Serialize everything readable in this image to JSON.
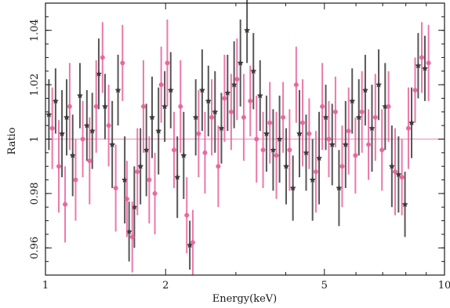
{
  "chart_data": {
    "type": "scatter",
    "title": "",
    "xlabel": "Energy(keV)",
    "ylabel": "Ratio",
    "xscale": "log",
    "xlim": [
      1,
      10
    ],
    "ylim": [
      0.95,
      1.05
    ],
    "x_ticks": [
      1,
      2,
      5,
      10
    ],
    "y_ticks": [
      0.96,
      0.98,
      1,
      1.02,
      1.04
    ],
    "grid": false,
    "legend": "none",
    "reference_line": {
      "y": 1,
      "color": "#f0a9c8"
    },
    "series": [
      {
        "marker": "star",
        "color": "#3a3a3a",
        "points": [
          {
            "x": 1.02,
            "y": 1.009,
            "err": 0.013
          },
          {
            "x": 1.06,
            "y": 1.014,
            "err": 0.012
          },
          {
            "x": 1.1,
            "y": 1.002,
            "err": 0.016
          },
          {
            "x": 1.13,
            "y": 1.008,
            "err": 0.014
          },
          {
            "x": 1.17,
            "y": 0.994,
            "err": 0.015
          },
          {
            "x": 1.22,
            "y": 1.016,
            "err": 0.012
          },
          {
            "x": 1.27,
            "y": 1.005,
            "err": 0.013
          },
          {
            "x": 1.31,
            "y": 1.003,
            "err": 0.014
          },
          {
            "x": 1.36,
            "y": 1.024,
            "err": 0.013
          },
          {
            "x": 1.41,
            "y": 1.012,
            "err": 0.012
          },
          {
            "x": 1.47,
            "y": 0.998,
            "err": 0.016
          },
          {
            "x": 1.52,
            "y": 1.018,
            "err": 0.013
          },
          {
            "x": 1.58,
            "y": 0.985,
            "err": 0.016
          },
          {
            "x": 1.62,
            "y": 0.966,
            "err": 0.011
          },
          {
            "x": 1.67,
            "y": 0.975,
            "err": 0.015
          },
          {
            "x": 1.73,
            "y": 0.99,
            "err": 0.014
          },
          {
            "x": 1.79,
            "y": 0.996,
            "err": 0.017
          },
          {
            "x": 1.85,
            "y": 1.008,
            "err": 0.015
          },
          {
            "x": 1.92,
            "y": 1.003,
            "err": 0.016
          },
          {
            "x": 1.99,
            "y": 1.012,
            "err": 0.013
          },
          {
            "x": 2.06,
            "y": 1.018,
            "err": 0.014
          },
          {
            "x": 2.14,
            "y": 0.986,
            "err": 0.015
          },
          {
            "x": 2.22,
            "y": 0.994,
            "err": 0.016
          },
          {
            "x": 2.3,
            "y": 0.961,
            "err": 0.009
          },
          {
            "x": 2.38,
            "y": 1.008,
            "err": 0.014
          },
          {
            "x": 2.47,
            "y": 1.018,
            "err": 0.015
          },
          {
            "x": 2.56,
            "y": 1.014,
            "err": 0.013
          },
          {
            "x": 2.66,
            "y": 1.01,
            "err": 0.015
          },
          {
            "x": 2.76,
            "y": 1.004,
            "err": 0.013
          },
          {
            "x": 2.86,
            "y": 1.017,
            "err": 0.014
          },
          {
            "x": 2.97,
            "y": 1.02,
            "err": 0.016
          },
          {
            "x": 3.08,
            "y": 1.028,
            "err": 0.016
          },
          {
            "x": 3.2,
            "y": 1.04,
            "err": 0.012
          },
          {
            "x": 3.32,
            "y": 1.025,
            "err": 0.014
          },
          {
            "x": 3.45,
            "y": 1.016,
            "err": 0.013
          },
          {
            "x": 3.58,
            "y": 1.002,
            "err": 0.014
          },
          {
            "x": 3.72,
            "y": 0.996,
            "err": 0.015
          },
          {
            "x": 3.86,
            "y": 1.0,
            "err": 0.016
          },
          {
            "x": 4.01,
            "y": 0.99,
            "err": 0.014
          },
          {
            "x": 4.17,
            "y": 0.982,
            "err": 0.012
          },
          {
            "x": 4.33,
            "y": 1.002,
            "err": 0.016
          },
          {
            "x": 4.5,
            "y": 0.995,
            "err": 0.014
          },
          {
            "x": 4.67,
            "y": 0.985,
            "err": 0.015
          },
          {
            "x": 4.85,
            "y": 0.993,
            "err": 0.017
          },
          {
            "x": 5.04,
            "y": 1.008,
            "err": 0.012
          },
          {
            "x": 5.23,
            "y": 0.998,
            "err": 0.015
          },
          {
            "x": 5.44,
            "y": 0.982,
            "err": 0.014
          },
          {
            "x": 5.65,
            "y": 0.998,
            "err": 0.016
          },
          {
            "x": 5.87,
            "y": 1.014,
            "err": 0.012
          },
          {
            "x": 6.1,
            "y": 1.008,
            "err": 0.014
          },
          {
            "x": 6.33,
            "y": 1.018,
            "err": 0.013
          },
          {
            "x": 6.58,
            "y": 1.004,
            "err": 0.016
          },
          {
            "x": 6.84,
            "y": 1.02,
            "err": 0.013
          },
          {
            "x": 7.1,
            "y": 1.012,
            "err": 0.016
          },
          {
            "x": 7.38,
            "y": 0.99,
            "err": 0.015
          },
          {
            "x": 7.67,
            "y": 0.987,
            "err": 0.014
          },
          {
            "x": 7.96,
            "y": 0.976,
            "err": 0.012
          },
          {
            "x": 8.27,
            "y": 1.006,
            "err": 0.013
          },
          {
            "x": 8.59,
            "y": 1.027,
            "err": 0.012
          },
          {
            "x": 8.93,
            "y": 1.026,
            "err": 0.012
          }
        ]
      },
      {
        "marker": "circle",
        "color": "#e8629c",
        "points": [
          {
            "x": 1.04,
            "y": 1.004,
            "err": 0.015
          },
          {
            "x": 1.08,
            "y": 0.99,
            "err": 0.017
          },
          {
            "x": 1.12,
            "y": 0.976,
            "err": 0.014
          },
          {
            "x": 1.15,
            "y": 1.012,
            "err": 0.016
          },
          {
            "x": 1.19,
            "y": 0.985,
            "err": 0.015
          },
          {
            "x": 1.24,
            "y": 1.0,
            "err": 0.014
          },
          {
            "x": 1.29,
            "y": 0.992,
            "err": 0.016
          },
          {
            "x": 1.34,
            "y": 1.012,
            "err": 0.017
          },
          {
            "x": 1.39,
            "y": 1.03,
            "err": 0.013
          },
          {
            "x": 1.44,
            "y": 1.005,
            "err": 0.015
          },
          {
            "x": 1.5,
            "y": 0.982,
            "err": 0.016
          },
          {
            "x": 1.56,
            "y": 1.028,
            "err": 0.014
          },
          {
            "x": 1.6,
            "y": 0.978,
            "err": 0.014
          },
          {
            "x": 1.65,
            "y": 0.964,
            "err": 0.013
          },
          {
            "x": 1.7,
            "y": 0.988,
            "err": 0.016
          },
          {
            "x": 1.76,
            "y": 1.012,
            "err": 0.017
          },
          {
            "x": 1.82,
            "y": 0.985,
            "err": 0.016
          },
          {
            "x": 1.88,
            "y": 0.98,
            "err": 0.015
          },
          {
            "x": 1.95,
            "y": 1.02,
            "err": 0.014
          },
          {
            "x": 2.02,
            "y": 1.028,
            "err": 0.016
          },
          {
            "x": 2.1,
            "y": 0.996,
            "err": 0.014
          },
          {
            "x": 2.18,
            "y": 1.012,
            "err": 0.017
          },
          {
            "x": 2.26,
            "y": 0.972,
            "err": 0.014
          },
          {
            "x": 2.34,
            "y": 0.962,
            "err": 0.012
          },
          {
            "x": 2.42,
            "y": 1.002,
            "err": 0.016
          },
          {
            "x": 2.51,
            "y": 0.995,
            "err": 0.015
          },
          {
            "x": 2.61,
            "y": 1.008,
            "err": 0.014
          },
          {
            "x": 2.71,
            "y": 0.99,
            "err": 0.015
          },
          {
            "x": 2.81,
            "y": 1.015,
            "err": 0.016
          },
          {
            "x": 2.92,
            "y": 1.01,
            "err": 0.014
          },
          {
            "x": 3.02,
            "y": 1.022,
            "err": 0.015
          },
          {
            "x": 3.14,
            "y": 1.008,
            "err": 0.016
          },
          {
            "x": 3.26,
            "y": 1.014,
            "err": 0.013
          },
          {
            "x": 3.38,
            "y": 1.0,
            "err": 0.016
          },
          {
            "x": 3.51,
            "y": 0.996,
            "err": 0.014
          },
          {
            "x": 3.65,
            "y": 1.006,
            "err": 0.015
          },
          {
            "x": 3.79,
            "y": 0.994,
            "err": 0.016
          },
          {
            "x": 3.94,
            "y": 1.008,
            "err": 0.013
          },
          {
            "x": 4.09,
            "y": 0.996,
            "err": 0.015
          },
          {
            "x": 4.25,
            "y": 1.02,
            "err": 0.014
          },
          {
            "x": 4.41,
            "y": 1.006,
            "err": 0.016
          },
          {
            "x": 4.58,
            "y": 1.002,
            "err": 0.013
          },
          {
            "x": 4.76,
            "y": 0.988,
            "err": 0.015
          },
          {
            "x": 4.94,
            "y": 1.012,
            "err": 0.016
          },
          {
            "x": 5.13,
            "y": 1.0,
            "err": 0.014
          },
          {
            "x": 5.33,
            "y": 1.01,
            "err": 0.013
          },
          {
            "x": 5.54,
            "y": 0.99,
            "err": 0.015
          },
          {
            "x": 5.75,
            "y": 1.003,
            "err": 0.016
          },
          {
            "x": 5.98,
            "y": 0.994,
            "err": 0.014
          },
          {
            "x": 6.21,
            "y": 1.01,
            "err": 0.015
          },
          {
            "x": 6.45,
            "y": 0.998,
            "err": 0.013
          },
          {
            "x": 6.71,
            "y": 1.008,
            "err": 0.016
          },
          {
            "x": 6.97,
            "y": 0.996,
            "err": 0.015
          },
          {
            "x": 7.24,
            "y": 1.012,
            "err": 0.013
          },
          {
            "x": 7.52,
            "y": 0.988,
            "err": 0.016
          },
          {
            "x": 7.82,
            "y": 0.986,
            "err": 0.014
          },
          {
            "x": 8.12,
            "y": 1.004,
            "err": 0.015
          },
          {
            "x": 8.44,
            "y": 1.018,
            "err": 0.012
          },
          {
            "x": 8.77,
            "y": 1.03,
            "err": 0.013
          },
          {
            "x": 9.12,
            "y": 1.028,
            "err": 0.014
          }
        ]
      }
    ]
  }
}
